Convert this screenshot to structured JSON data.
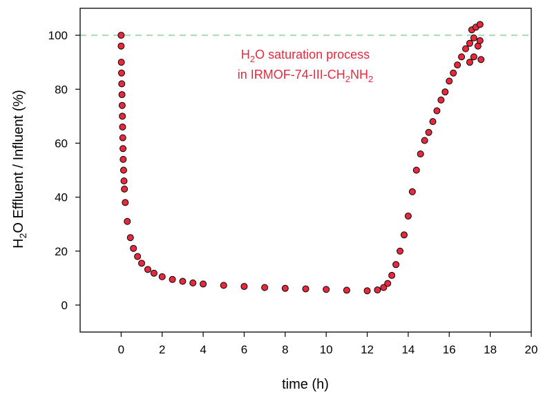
{
  "chart_data": {
    "type": "scatter",
    "xlabel": "time (h)",
    "ylabel": {
      "prefix": "H",
      "sub": "2",
      "suffix": "O Effluent / Influent (%)"
    },
    "annotation": {
      "line1": {
        "prefix": "H",
        "sub": "2",
        "suffix": "O saturation process"
      },
      "line2": {
        "prefix": "in IRMOF-74-III-CH",
        "sub1": "2",
        "mid": "NH",
        "sub2": "2"
      },
      "color": "#e8283c"
    },
    "xlim": [
      -2,
      20
    ],
    "ylim": [
      -10,
      110
    ],
    "xticks": [
      0,
      2,
      4,
      6,
      8,
      10,
      12,
      14,
      16,
      18,
      20
    ],
    "yticks": [
      0,
      20,
      40,
      60,
      80,
      100
    ],
    "reference_line": {
      "y": 100,
      "style": "dashed",
      "color": "#a8dcb4"
    },
    "marker_fill": "#e8283c",
    "marker_edge": "#000000",
    "series": [
      {
        "points": [
          [
            0.0,
            100
          ],
          [
            0.0,
            96
          ],
          [
            0.01,
            90
          ],
          [
            0.02,
            86
          ],
          [
            0.03,
            82
          ],
          [
            0.04,
            78
          ],
          [
            0.05,
            74
          ],
          [
            0.06,
            70
          ],
          [
            0.07,
            66
          ],
          [
            0.08,
            62
          ],
          [
            0.09,
            58
          ],
          [
            0.1,
            54
          ],
          [
            0.12,
            50
          ],
          [
            0.14,
            46
          ],
          [
            0.16,
            43
          ],
          [
            0.2,
            38
          ],
          [
            0.3,
            31
          ],
          [
            0.45,
            25
          ],
          [
            0.6,
            21
          ],
          [
            0.8,
            18
          ],
          [
            1.0,
            15.5
          ],
          [
            1.3,
            13.2
          ],
          [
            1.6,
            11.8
          ],
          [
            2.0,
            10.5
          ],
          [
            2.5,
            9.5
          ],
          [
            3.0,
            8.8
          ],
          [
            3.5,
            8.2
          ],
          [
            4.0,
            7.8
          ],
          [
            5.0,
            7.3
          ],
          [
            6.0,
            6.9
          ],
          [
            7.0,
            6.5
          ],
          [
            8.0,
            6.2
          ],
          [
            9.0,
            6.0
          ],
          [
            10.0,
            5.8
          ],
          [
            11.0,
            5.5
          ],
          [
            12.0,
            5.3
          ],
          [
            12.5,
            5.6
          ],
          [
            12.8,
            6.5
          ],
          [
            13.0,
            8.0
          ],
          [
            13.2,
            11.0
          ],
          [
            13.4,
            15.0
          ],
          [
            13.6,
            20.0
          ],
          [
            13.8,
            26.0
          ],
          [
            14.0,
            33.0
          ],
          [
            14.2,
            42.0
          ],
          [
            14.4,
            50.0
          ],
          [
            14.6,
            56.0
          ],
          [
            14.8,
            61.0
          ],
          [
            15.0,
            64.0
          ],
          [
            15.2,
            68.0
          ],
          [
            15.4,
            72.0
          ],
          [
            15.6,
            76.0
          ],
          [
            15.8,
            79.0
          ],
          [
            16.0,
            83.0
          ],
          [
            16.2,
            86.0
          ],
          [
            16.4,
            89.0
          ],
          [
            16.6,
            92.0
          ],
          [
            16.8,
            95.0
          ],
          [
            17.0,
            97.0
          ],
          [
            17.0,
            90.0
          ],
          [
            17.1,
            102.0
          ],
          [
            17.2,
            99.0
          ],
          [
            17.2,
            92.0
          ],
          [
            17.3,
            103.0
          ],
          [
            17.4,
            96.0
          ],
          [
            17.5,
            104.0
          ],
          [
            17.5,
            98.0
          ],
          [
            17.55,
            91.0
          ]
        ]
      }
    ]
  }
}
